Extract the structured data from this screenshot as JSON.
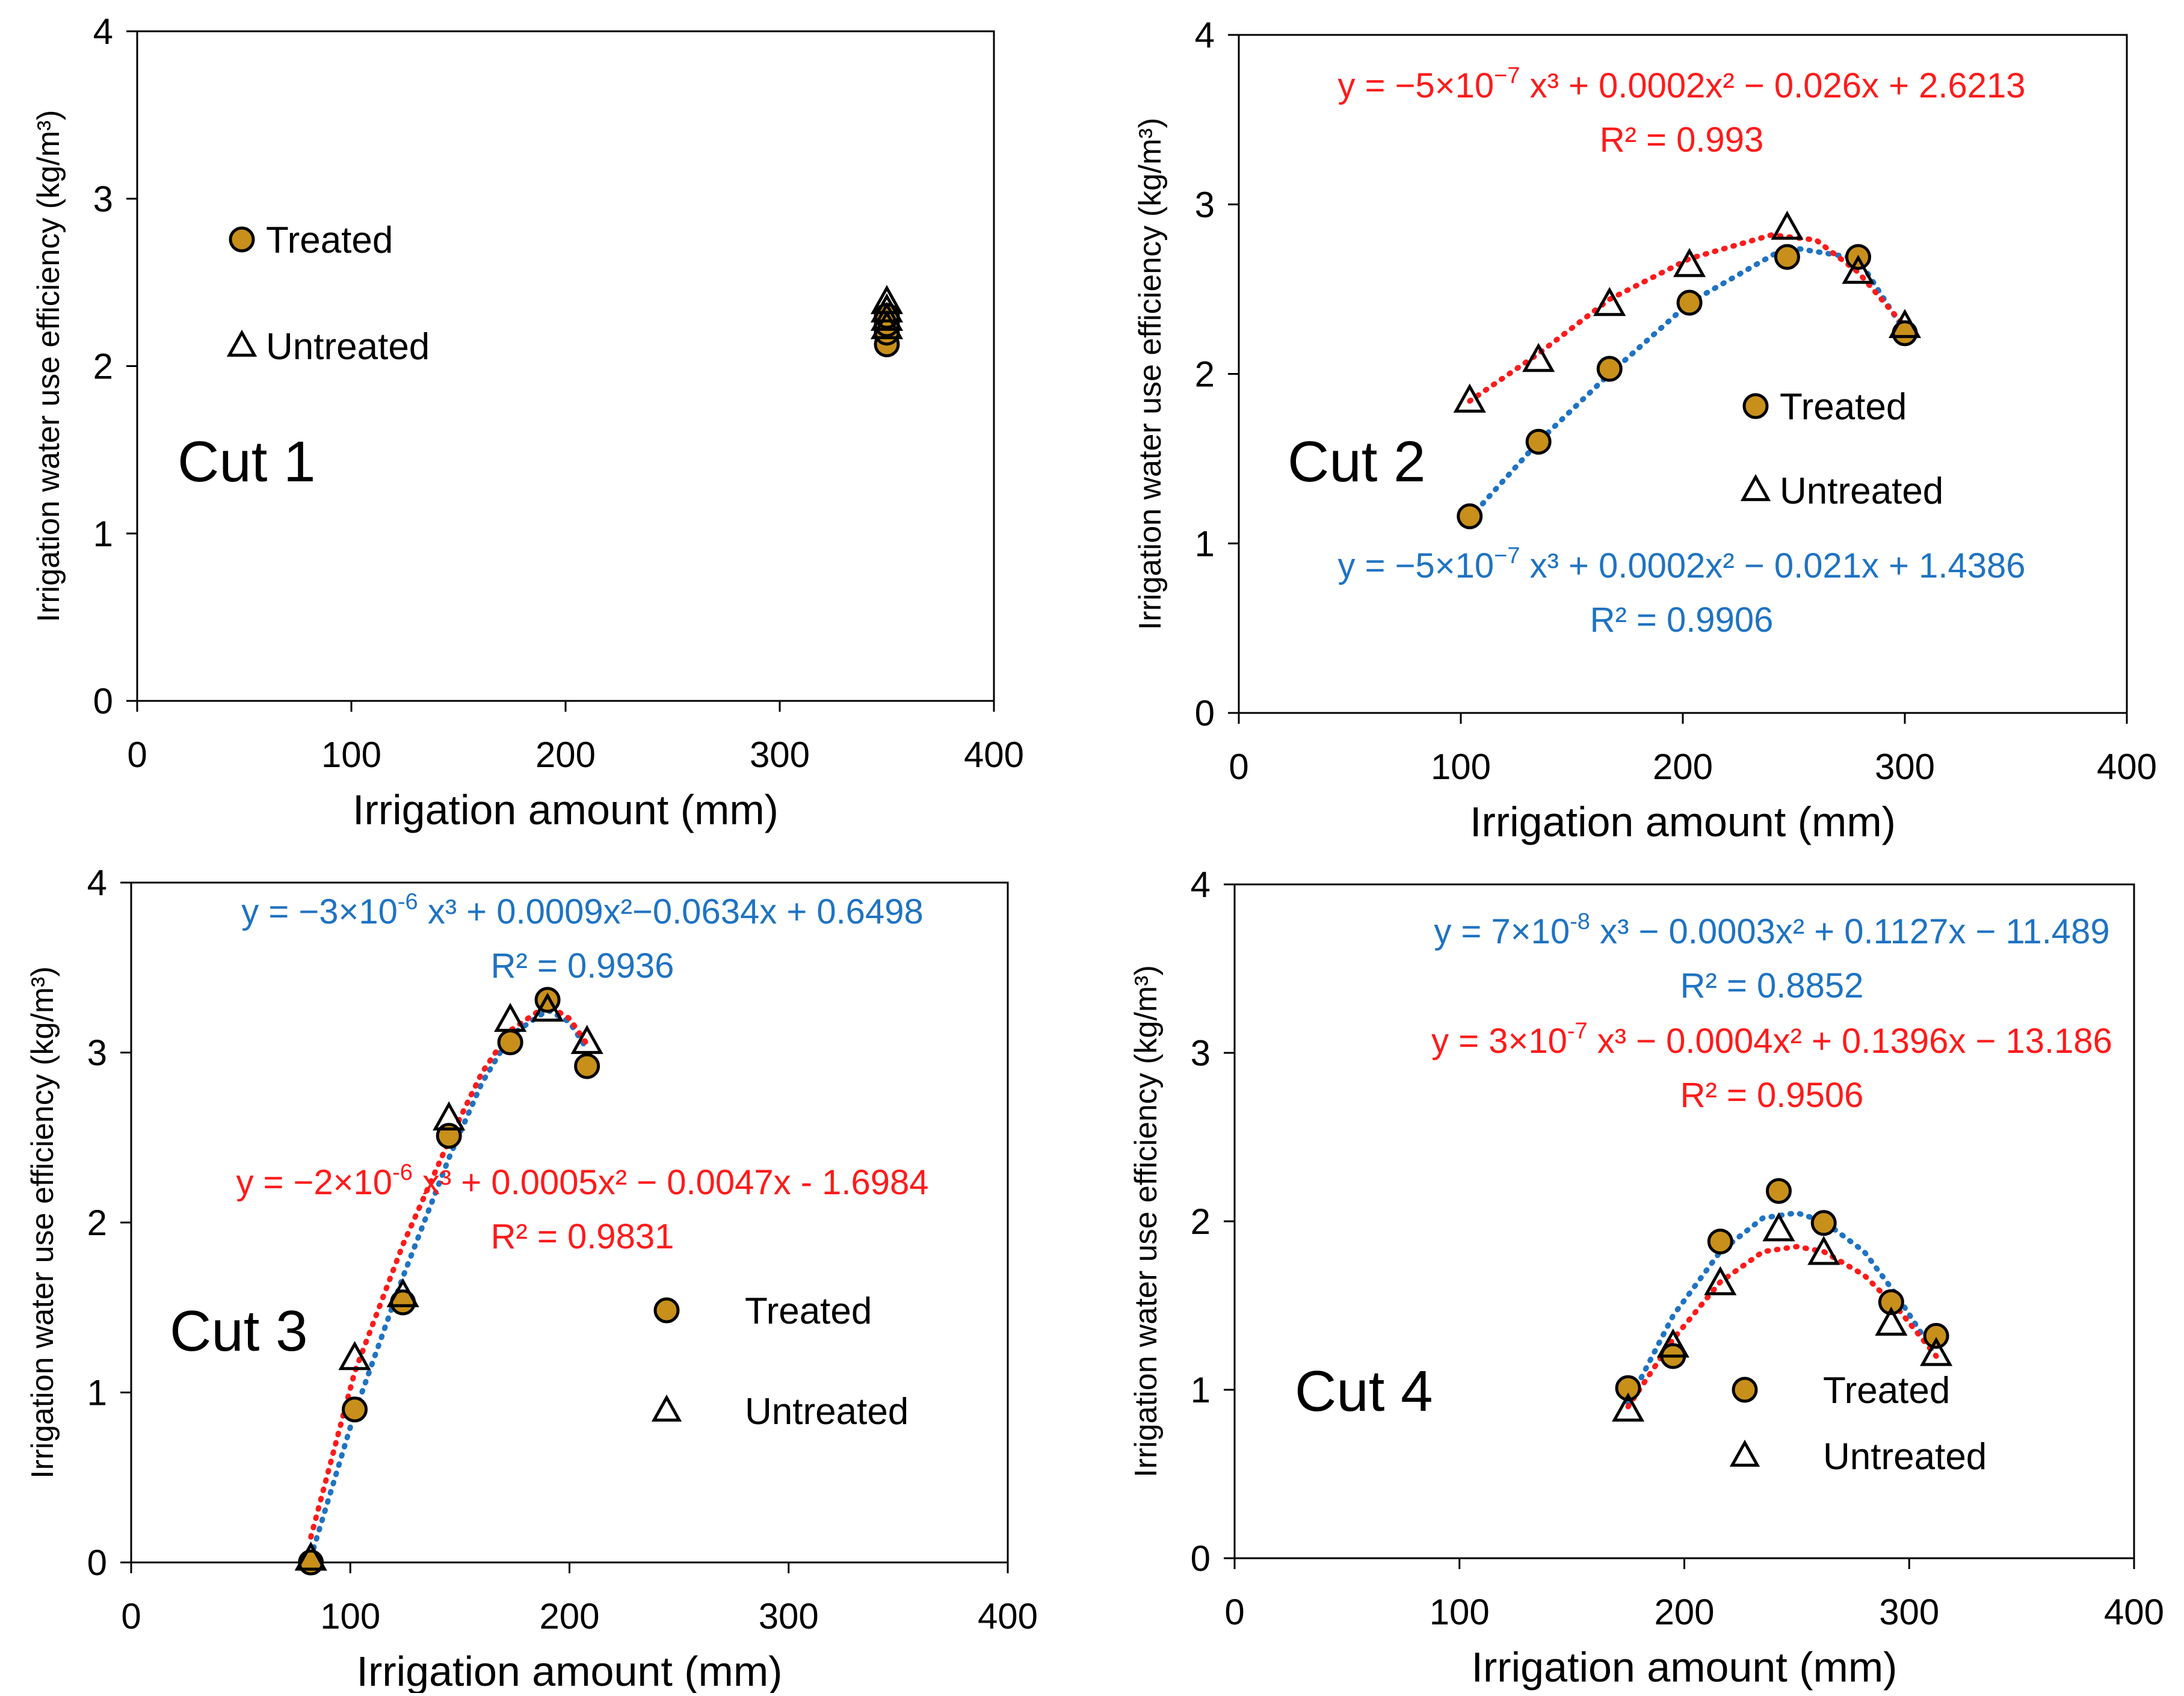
{
  "colors": {
    "treated_fill": "#C8901A",
    "marker_stroke": "#000000",
    "fit_treated": "#1F73C2",
    "fit_untreated": "#FF1A1A",
    "axis": "#000000",
    "eq_blue": "#1F73C2",
    "eq_red": "#FF1A1A"
  },
  "chart_data": [
    {
      "type": "scatter",
      "panel_label": "Cut 1",
      "xlabel": "Irrigation amount (mm)",
      "ylabel": "Irrigation water use efficiency (kg/m³)",
      "xlim": [
        0,
        400
      ],
      "ylim": [
        0,
        4
      ],
      "xticks": [
        "0",
        "100",
        "200",
        "300",
        "400"
      ],
      "yticks": [
        "0",
        "1",
        "2",
        "3",
        "4"
      ],
      "grid": false,
      "legend": {
        "treated": "Treated",
        "untreated": "Untreated",
        "placement": "left-middle"
      },
      "series": [
        {
          "name": "Treated",
          "marker": "circle",
          "points": [
            [
              350,
              2.13
            ],
            [
              350,
              2.2
            ],
            [
              350,
              2.25
            ],
            [
              350,
              2.3
            ]
          ]
        },
        {
          "name": "Untreated",
          "marker": "triangle",
          "points": [
            [
              350,
              2.23
            ],
            [
              350,
              2.28
            ],
            [
              350,
              2.33
            ],
            [
              350,
              2.38
            ]
          ]
        }
      ],
      "fits": [],
      "equations": []
    },
    {
      "type": "scatter",
      "panel_label": "Cut 2",
      "xlabel": "Irrigation amount (mm)",
      "ylabel": "Irrigation water use efficiency (kg/m³)",
      "xlim": [
        0,
        400
      ],
      "ylim": [
        0,
        4
      ],
      "xticks": [
        "0",
        "100",
        "200",
        "300",
        "400"
      ],
      "yticks": [
        "0",
        "1",
        "2",
        "3",
        "4"
      ],
      "grid": false,
      "legend": {
        "treated": "Treated",
        "untreated": "Untreated",
        "placement": "middle-right"
      },
      "series": [
        {
          "name": "Treated",
          "marker": "circle",
          "points": [
            [
              104,
              1.16
            ],
            [
              135,
              1.6
            ],
            [
              167,
              2.03
            ],
            [
              203,
              2.42
            ],
            [
              247,
              2.69
            ],
            [
              279,
              2.69
            ],
            [
              300,
              2.24
            ]
          ]
        },
        {
          "name": "Untreated",
          "marker": "triangle",
          "points": [
            [
              104,
              1.84
            ],
            [
              135,
              2.08
            ],
            [
              167,
              2.41
            ],
            [
              203,
              2.64
            ],
            [
              247,
              2.86
            ],
            [
              279,
              2.6
            ],
            [
              300,
              2.28
            ]
          ]
        }
      ],
      "fits": [
        {
          "series": "Treated",
          "color": "blue",
          "x_range": [
            104,
            300
          ],
          "points": [
            [
              104,
              1.15
            ],
            [
              135,
              1.6
            ],
            [
              167,
              2.0
            ],
            [
              203,
              2.42
            ],
            [
              247,
              2.75
            ],
            [
              279,
              2.68
            ],
            [
              300,
              2.25
            ]
          ]
        },
        {
          "series": "Untreated",
          "color": "red",
          "x_range": [
            104,
            300
          ],
          "points": [
            [
              104,
              1.84
            ],
            [
              135,
              2.12
            ],
            [
              167,
              2.44
            ],
            [
              203,
              2.68
            ],
            [
              240,
              2.82
            ],
            [
              260,
              2.79
            ],
            [
              279,
              2.6
            ],
            [
              300,
              2.28
            ]
          ]
        }
      ],
      "equations": [
        {
          "color": "red",
          "pre": "y = −5×10",
          "sup": "−7",
          "post": " x³ + 0.0002x² − 0.026x + 2.6213",
          "r2": "R² = 0.993"
        },
        {
          "color": "blue",
          "pre": "y = −5×10",
          "sup": "−7",
          "post": " x³ + 0.0002x² − 0.021x + 1.4386",
          "r2": "R² = 0.9906"
        }
      ]
    },
    {
      "type": "scatter",
      "panel_label": "Cut 3",
      "xlabel": "Irrigation amount (mm)",
      "ylabel": "Irrigation water use efficiency (kg/m³)",
      "xlim": [
        0,
        400
      ],
      "ylim": [
        0,
        4
      ],
      "xticks": [
        "0",
        "100",
        "200",
        "300",
        "400"
      ],
      "yticks": [
        "0",
        "1",
        "2",
        "3",
        "4"
      ],
      "grid": false,
      "legend": {
        "treated": "Treated",
        "untreated": "Untreated",
        "placement": "bottom-right"
      },
      "series": [
        {
          "name": "Treated",
          "marker": "circle",
          "points": [
            [
              82,
              0.0
            ],
            [
              102,
              0.9
            ],
            [
              124,
              1.53
            ],
            [
              145,
              2.51
            ],
            [
              173,
              3.06
            ],
            [
              190,
              3.31
            ],
            [
              208,
              2.92
            ]
          ]
        },
        {
          "name": "Untreated",
          "marker": "triangle",
          "points": [
            [
              82,
              0.02
            ],
            [
              102,
              1.2
            ],
            [
              124,
              1.57
            ],
            [
              145,
              2.61
            ],
            [
              173,
              3.19
            ],
            [
              190,
              3.25
            ],
            [
              208,
              3.06
            ]
          ]
        }
      ],
      "fits": [
        {
          "series": "Treated",
          "color": "blue",
          "x_range": [
            82,
            208
          ],
          "points": [
            [
              82,
              0.03
            ],
            [
              102,
              0.88
            ],
            [
              124,
              1.68
            ],
            [
              145,
              2.38
            ],
            [
              160,
              2.82
            ],
            [
              173,
              3.1
            ],
            [
              190,
              3.25
            ],
            [
              200,
              3.18
            ],
            [
              208,
              3.02
            ]
          ]
        },
        {
          "series": "Untreated",
          "color": "red",
          "x_range": [
            82,
            208
          ],
          "points": [
            [
              82,
              0.15
            ],
            [
              102,
              1.12
            ],
            [
              124,
              1.87
            ],
            [
              145,
              2.48
            ],
            [
              160,
              2.88
            ],
            [
              173,
              3.13
            ],
            [
              190,
              3.28
            ],
            [
              200,
              3.2
            ],
            [
              208,
              3.05
            ]
          ]
        }
      ],
      "equations": [
        {
          "color": "blue",
          "pre": "y = −3×10",
          "sup": "-6",
          "post": " x³ + 0.0009x²−0.0634x + 0.6498",
          "r2": "R² = 0.9936"
        },
        {
          "color": "red",
          "pre": "y = −2×10",
          "sup": "-6",
          "post": " x³ + 0.0005x² − 0.0047x - 1.6984",
          "r2": "R² = 0.9831"
        }
      ]
    },
    {
      "type": "scatter",
      "panel_label": "Cut 4",
      "xlabel": "Irrigation amount (mm)",
      "ylabel": "Irrigation water use efficiency (kg/m³)",
      "xlim": [
        0,
        400
      ],
      "ylim": [
        0,
        4
      ],
      "xticks": [
        "0",
        "100",
        "200",
        "300",
        "400"
      ],
      "yticks": [
        "0",
        "1",
        "2",
        "3",
        "4"
      ],
      "grid": false,
      "legend": {
        "treated": "Treated",
        "untreated": "Untreated",
        "placement": "bottom-right"
      },
      "series": [
        {
          "name": "Treated",
          "marker": "circle",
          "points": [
            [
              175,
              1.01
            ],
            [
              195,
              1.2
            ],
            [
              216,
              1.88
            ],
            [
              242,
              2.18
            ],
            [
              262,
              1.99
            ],
            [
              292,
              1.52
            ],
            [
              312,
              1.32
            ]
          ]
        },
        {
          "name": "Untreated",
          "marker": "triangle",
          "points": [
            [
              175,
              0.88
            ],
            [
              195,
              1.26
            ],
            [
              216,
              1.63
            ],
            [
              242,
              1.95
            ],
            [
              262,
              1.81
            ],
            [
              292,
              1.39
            ],
            [
              312,
              1.21
            ]
          ]
        }
      ],
      "fits": [
        {
          "series": "Treated",
          "color": "blue",
          "x_range": [
            175,
            312
          ],
          "points": [
            [
              175,
              0.92
            ],
            [
              195,
              1.44
            ],
            [
              216,
              1.82
            ],
            [
              235,
              2.02
            ],
            [
              250,
              2.05
            ],
            [
              262,
              2.0
            ],
            [
              280,
              1.82
            ],
            [
              295,
              1.55
            ],
            [
              312,
              1.2
            ]
          ]
        },
        {
          "series": "Untreated",
          "color": "red",
          "x_range": [
            175,
            312
          ],
          "points": [
            [
              175,
              0.9
            ],
            [
              195,
              1.3
            ],
            [
              216,
              1.64
            ],
            [
              235,
              1.82
            ],
            [
              250,
              1.85
            ],
            [
              262,
              1.82
            ],
            [
              280,
              1.68
            ],
            [
              295,
              1.48
            ],
            [
              312,
              1.2
            ]
          ]
        }
      ],
      "equations": [
        {
          "color": "blue",
          "pre": "y = 7×10",
          "sup": "-8",
          "post": " x³ − 0.0003x² + 0.1127x − 11.489",
          "r2": "R² = 0.8852"
        },
        {
          "color": "red",
          "pre": "y = 3×10",
          "sup": "-7",
          "post": " x³ − 0.0004x² + 0.1396x − 13.186",
          "r2": "R² = 0.9506"
        }
      ]
    }
  ]
}
